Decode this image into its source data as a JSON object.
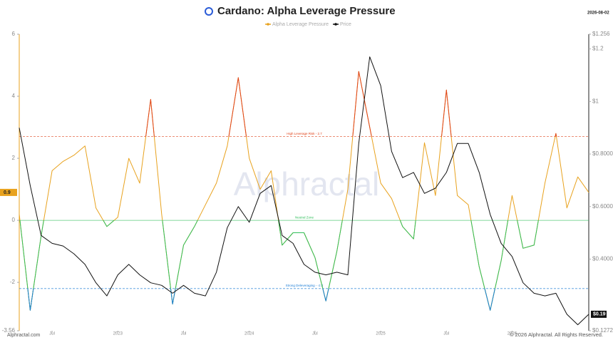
{
  "chart_data": {
    "type": "line",
    "title": "Cardano: Alpha Leverage Pressure",
    "date": "2026-08-02",
    "watermark": "Alphractal",
    "footer_left": "Alphractal.com",
    "footer_right": "© 2026 Alphractal. All Rights Reserved.",
    "categories": [
      null,
      null,
      null,
      null,
      null,
      null,
      null,
      null,
      null,
      null,
      null,
      null,
      null,
      null,
      null,
      null,
      null,
      null,
      null,
      null,
      null,
      null,
      null,
      null,
      null,
      null,
      null,
      null,
      null,
      null,
      null,
      null,
      null,
      null,
      null,
      null,
      null,
      null,
      null,
      null,
      null,
      null,
      null,
      null,
      null,
      null,
      null,
      null,
      null,
      null,
      null,
      null,
      null
    ],
    "xticks": [
      {
        "value": 3,
        "label": "Jul"
      },
      {
        "value": 9,
        "label": "2023"
      },
      {
        "value": 15,
        "label": "Jul"
      },
      {
        "value": 21,
        "label": "2024"
      },
      {
        "value": 27,
        "label": "Jul"
      },
      {
        "value": 33,
        "label": "2025"
      },
      {
        "value": 39,
        "label": "Jul"
      },
      {
        "value": 45,
        "label": "2026"
      }
    ],
    "ylim": [
      -3.56,
      6
    ],
    "yticks": [
      6,
      4,
      2,
      0,
      -2,
      -3.56
    ],
    "y2lim": [
      0.12726,
      1.256
    ],
    "y2ticks": [
      {
        "value": 1.256,
        "label": "$1.256"
      },
      {
        "value": 1.2,
        "label": "$1.2"
      },
      {
        "value": 1,
        "label": "$1"
      },
      {
        "value": 0.8,
        "label": "$0.80000"
      },
      {
        "value": 0.6,
        "label": "$0.60000"
      },
      {
        "value": 0.4,
        "label": "$0.40000"
      },
      {
        "value": 0.12726,
        "label": "$0.12726"
      }
    ],
    "annotations": [
      {
        "label": "High Leverage Risk - 2.7",
        "value": 2.7,
        "color": "#e0441b",
        "side": "above"
      },
      {
        "label": "Neutral Zone",
        "value": 0,
        "color": "#2fbf5a",
        "side": "below"
      },
      {
        "label": "Strong Deleveraging - -2.2",
        "value": -2.2,
        "color": "#1f7fd6",
        "side": "below"
      }
    ],
    "series": [
      {
        "name": "Alpha Leverage Pressure",
        "color": "#e8a21e",
        "last_label": "0.9",
        "values": [
          0.2,
          -2.9,
          -0.5,
          1.6,
          1.9,
          2.1,
          2.4,
          0.4,
          -0.2,
          0.1,
          2.0,
          1.2,
          3.9,
          0.2,
          -2.7,
          -0.8,
          -0.2,
          0.5,
          1.2,
          2.4,
          4.6,
          2.0,
          1.0,
          1.6,
          -0.8,
          -0.4,
          -0.4,
          -1.2,
          -2.6,
          -1.0,
          1.0,
          4.8,
          3.0,
          1.2,
          0.7,
          -0.2,
          -0.6,
          2.5,
          0.8,
          4.2,
          0.8,
          0.5,
          -1.5,
          -2.9,
          -1.3,
          0.8,
          -0.9,
          -0.8,
          1.2,
          2.8,
          0.4,
          1.4,
          0.9
        ]
      },
      {
        "name": "Price",
        "color": "#111111",
        "axis": "y2",
        "last_label": "$0.19",
        "values": [
          0.9,
          0.68,
          0.49,
          0.46,
          0.45,
          0.42,
          0.38,
          0.31,
          0.26,
          0.34,
          0.38,
          0.34,
          0.31,
          0.3,
          0.27,
          0.3,
          0.27,
          0.26,
          0.35,
          0.52,
          0.6,
          0.54,
          0.65,
          0.68,
          0.49,
          0.46,
          0.38,
          0.35,
          0.34,
          0.35,
          0.34,
          0.84,
          1.17,
          1.06,
          0.81,
          0.71,
          0.73,
          0.65,
          0.67,
          0.73,
          0.84,
          0.84,
          0.73,
          0.57,
          0.46,
          0.41,
          0.31,
          0.27,
          0.26,
          0.27,
          0.19,
          0.15,
          0.19
        ]
      }
    ]
  }
}
